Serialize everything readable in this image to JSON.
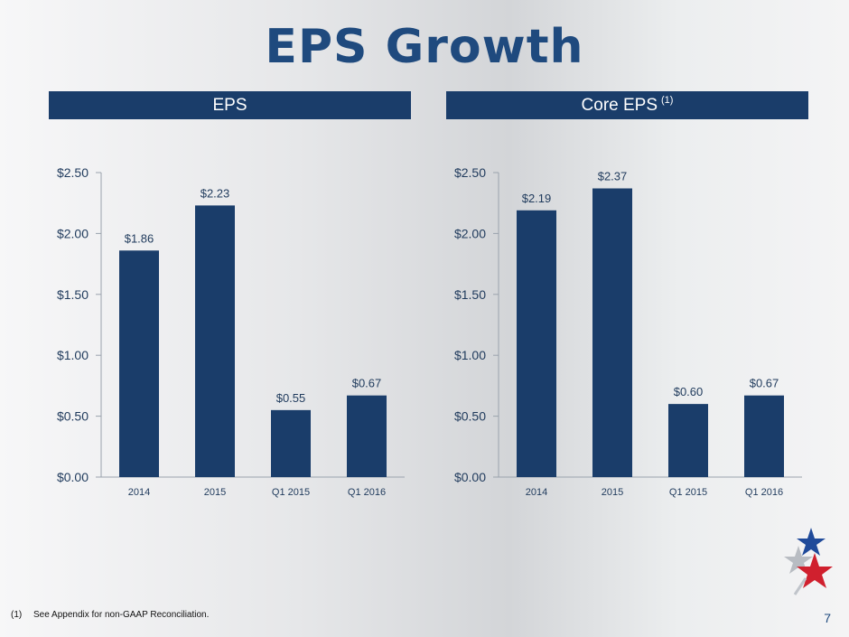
{
  "slide": {
    "title": "EPS Growth",
    "footnote_marker": "(1)",
    "footnote_text": "See Appendix for non-GAAP Reconciliation.",
    "page_number": "7",
    "logo_icon": "star-logo-icon"
  },
  "panels": [
    {
      "header": "EPS",
      "header_sup": ""
    },
    {
      "header": "Core EPS",
      "header_sup": "(1)"
    }
  ],
  "chart_data": [
    {
      "type": "bar",
      "title": "EPS",
      "categories": [
        "2014",
        "2015",
        "Q1 2015",
        "Q1 2016"
      ],
      "values": [
        1.86,
        2.23,
        0.55,
        0.67
      ],
      "value_labels": [
        "$1.86",
        "$2.23",
        "$0.55",
        "$0.67"
      ],
      "yticks": [
        "$0.00",
        "$0.50",
        "$1.00",
        "$1.50",
        "$2.00",
        "$2.50"
      ],
      "ylim": [
        0,
        2.5
      ],
      "bar_color": "#1a3d6a",
      "grid": false,
      "xlabel": "",
      "ylabel": ""
    },
    {
      "type": "bar",
      "title": "Core EPS (1)",
      "categories": [
        "2014",
        "2015",
        "Q1 2015",
        "Q1 2016"
      ],
      "values": [
        2.19,
        2.37,
        0.6,
        0.67
      ],
      "value_labels": [
        "$2.19",
        "$2.37",
        "$0.60",
        "$0.67"
      ],
      "yticks": [
        "$0.00",
        "$0.50",
        "$1.00",
        "$1.50",
        "$2.00",
        "$2.50"
      ],
      "ylim": [
        0,
        2.5
      ],
      "bar_color": "#1a3d6a",
      "grid": false,
      "xlabel": "",
      "ylabel": ""
    }
  ]
}
